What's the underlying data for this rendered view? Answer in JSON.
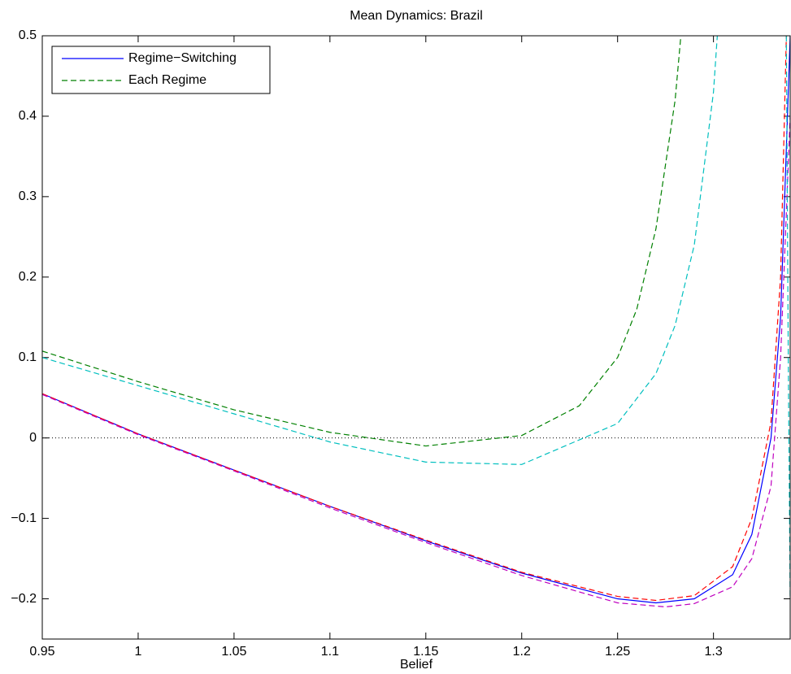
{
  "chart_data": {
    "type": "line",
    "title": "Mean Dynamics: Brazil",
    "x_label": "Belief",
    "xlim": [
      0.95,
      1.34
    ],
    "ylim": [
      -0.25,
      0.5
    ],
    "xticks": [
      0.95,
      1,
      1.05,
      1.1,
      1.15,
      1.2,
      1.25,
      1.3
    ],
    "yticks": [
      {
        "value": -0.2,
        "label": "−0.2"
      },
      {
        "value": -0.1,
        "label": "−0.1"
      },
      0,
      0.1,
      0.2,
      0.3,
      0.4,
      0.5
    ],
    "hlines": [
      0
    ],
    "legend": "upper left",
    "series": [
      {
        "name": "Regime−Switching",
        "color": "#0000ff",
        "style": "solid",
        "x": [
          0.95,
          1.0,
          1.05,
          1.1,
          1.15,
          1.2,
          1.25,
          1.27,
          1.29,
          1.31,
          1.32,
          1.33,
          1.335,
          1.34
        ],
        "values": [
          0.055,
          0.005,
          -0.04,
          -0.085,
          -0.128,
          -0.168,
          -0.2,
          -0.205,
          -0.2,
          -0.17,
          -0.12,
          0,
          0.15,
          0.5
        ]
      },
      {
        "name": "Each Regime",
        "color": "#008000",
        "style": "dashed",
        "x": [
          0.95,
          1.0,
          1.05,
          1.1,
          1.15,
          1.2,
          1.23,
          1.25,
          1.26,
          1.27,
          1.28,
          1.283
        ],
        "values": [
          0.108,
          0.07,
          0.035,
          0.007,
          -0.01,
          0.003,
          0.04,
          0.1,
          0.16,
          0.26,
          0.42,
          0.5
        ]
      },
      {
        "color": "#ff0000",
        "style": "dashed",
        "x": [
          0.95,
          1.0,
          1.05,
          1.1,
          1.15,
          1.2,
          1.25,
          1.27,
          1.29,
          1.31,
          1.32,
          1.33,
          1.335,
          1.338
        ],
        "values": [
          0.055,
          0.005,
          -0.04,
          -0.085,
          -0.127,
          -0.167,
          -0.197,
          -0.202,
          -0.196,
          -0.16,
          -0.1,
          0.02,
          0.2,
          0.5
        ]
      },
      {
        "color": "#bf00bf",
        "style": "dashed",
        "x": [
          0.95,
          1.0,
          1.05,
          1.1,
          1.15,
          1.2,
          1.25,
          1.275,
          1.29,
          1.31,
          1.32,
          1.33,
          1.335,
          1.34
        ],
        "values": [
          0.054,
          0.004,
          -0.041,
          -0.087,
          -0.13,
          -0.171,
          -0.205,
          -0.21,
          -0.206,
          -0.185,
          -0.15,
          -0.06,
          0.1,
          0.4
        ]
      },
      {
        "color": "#00bfbf",
        "style": "dashed",
        "x": [
          0.95,
          1.0,
          1.05,
          1.1,
          1.15,
          1.2,
          1.25,
          1.27,
          1.28,
          1.29,
          1.3,
          1.302,
          1.32,
          1.338,
          1.339,
          1.34
        ],
        "values": [
          0.1,
          0.065,
          0.03,
          -0.005,
          -0.03,
          -0.033,
          0.018,
          0.08,
          0.14,
          0.24,
          0.43,
          0.5,
          null,
          0.5,
          0.1,
          -0.2
        ]
      }
    ]
  }
}
